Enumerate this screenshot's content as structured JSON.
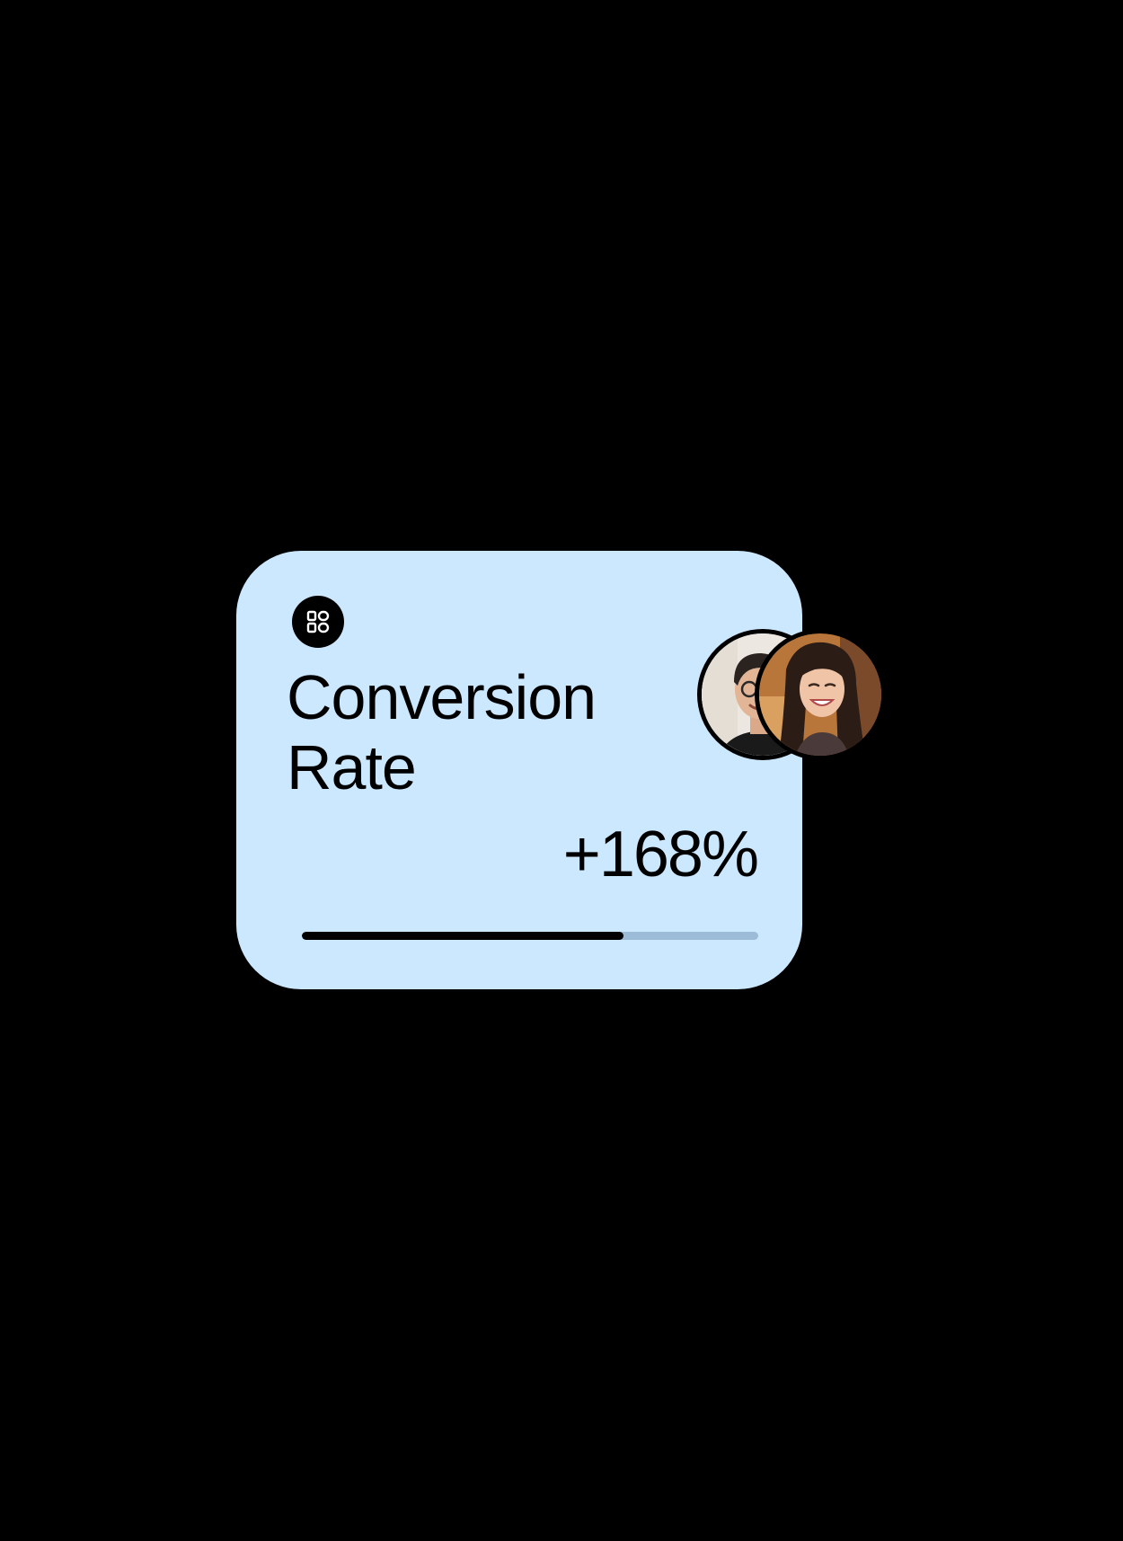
{
  "colors": {
    "background": "#000000",
    "card_background": "#cce8ff",
    "progress_track": "#9bbbd6",
    "progress_fill": "#000000",
    "icon_background": "#000000",
    "icon_glyph": "#ffffff"
  },
  "card": {
    "icon": "widgets-icon",
    "title": "Conversion Rate",
    "value": "+168%",
    "progress": 0.705
  },
  "avatars": [
    {
      "icon": "person-man-glasses-avatar"
    },
    {
      "icon": "person-woman-smiling-avatar"
    }
  ]
}
